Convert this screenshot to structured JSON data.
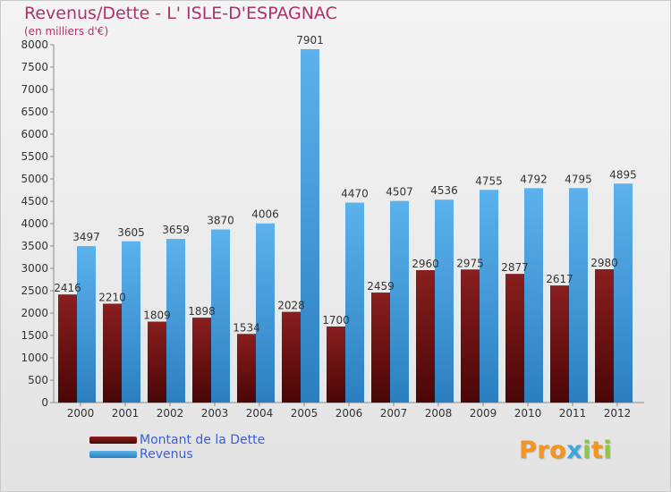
{
  "title": "Revenus/Dette - L' ISLE-D'ESPAGNAC",
  "subtitle": "(en milliers d'€)",
  "logo_text": "Proxiti",
  "colors": {
    "title": "#b0316a",
    "debt": "#6b0d0d",
    "revenue": "#3f9fe0",
    "legend_text": "#3a5fd8",
    "logo": [
      "#f7941d",
      "#f7941d",
      "#f7941d",
      "#3aa8e0",
      "#8dc63f",
      "#f7941d",
      "#8dc63f"
    ]
  },
  "chart_data": {
    "type": "bar",
    "categories": [
      "2000",
      "2001",
      "2002",
      "2003",
      "2004",
      "2005",
      "2006",
      "2007",
      "2008",
      "2009",
      "2010",
      "2011",
      "2012"
    ],
    "series": [
      {
        "name": "Montant de la Dette",
        "values": [
          2416,
          2210,
          1809,
          1898,
          1534,
          2028,
          1700,
          2459,
          2960,
          2975,
          2877,
          2617,
          2980
        ]
      },
      {
        "name": "Revenus",
        "values": [
          3497,
          3605,
          3659,
          3870,
          4006,
          7901,
          4470,
          4507,
          4536,
          4755,
          4792,
          4795,
          4895
        ]
      }
    ],
    "ylim": [
      0,
      8000
    ],
    "ytick_step": 500,
    "xlabel": "",
    "ylabel": "",
    "grid": false,
    "legend_position": "bottom-left"
  }
}
